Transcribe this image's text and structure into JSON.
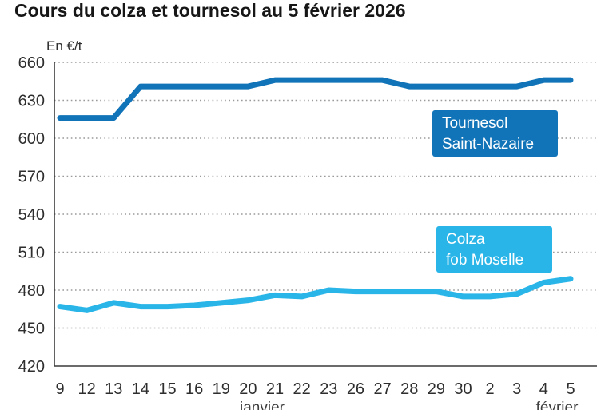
{
  "title": "Cours du colza et tournesol au 5 février 2026",
  "chart_data": {
    "type": "line",
    "title": "Cours du colza et tournesol au 5 février 2026",
    "unit_label": "En €/t",
    "grid": "horizontal dotted",
    "legend_position": "inline boxed labels on plot",
    "ylim": [
      420,
      660
    ],
    "y_ticks": [
      420,
      450,
      480,
      510,
      540,
      570,
      600,
      630,
      660
    ],
    "x_tick_labels": [
      "9",
      "12",
      "13",
      "14",
      "15",
      "16",
      "19",
      "20",
      "21",
      "22",
      "23",
      "26",
      "27",
      "28",
      "29",
      "30",
      "2",
      "3",
      "4",
      "5"
    ],
    "months": [
      {
        "label": "janvier"
      },
      {
        "label": "février"
      }
    ],
    "series": [
      {
        "name": "Tournesol Saint-Nazaire",
        "label_lines": [
          "Tournesol",
          "Saint-Nazaire"
        ],
        "color": "#1274b8",
        "values": [
          616,
          616,
          616,
          641,
          641,
          641,
          641,
          641,
          646,
          646,
          646,
          646,
          646,
          641,
          641,
          641,
          641,
          641,
          646,
          646
        ]
      },
      {
        "name": "Colza fob Moselle",
        "label_lines": [
          "Colza",
          "fob Moselle"
        ],
        "color": "#29b5e8",
        "values": [
          467,
          464,
          470,
          467,
          467,
          468,
          470,
          472,
          476,
          475,
          480,
          479,
          479,
          479,
          479,
          475,
          475,
          477,
          486,
          489
        ]
      }
    ]
  }
}
